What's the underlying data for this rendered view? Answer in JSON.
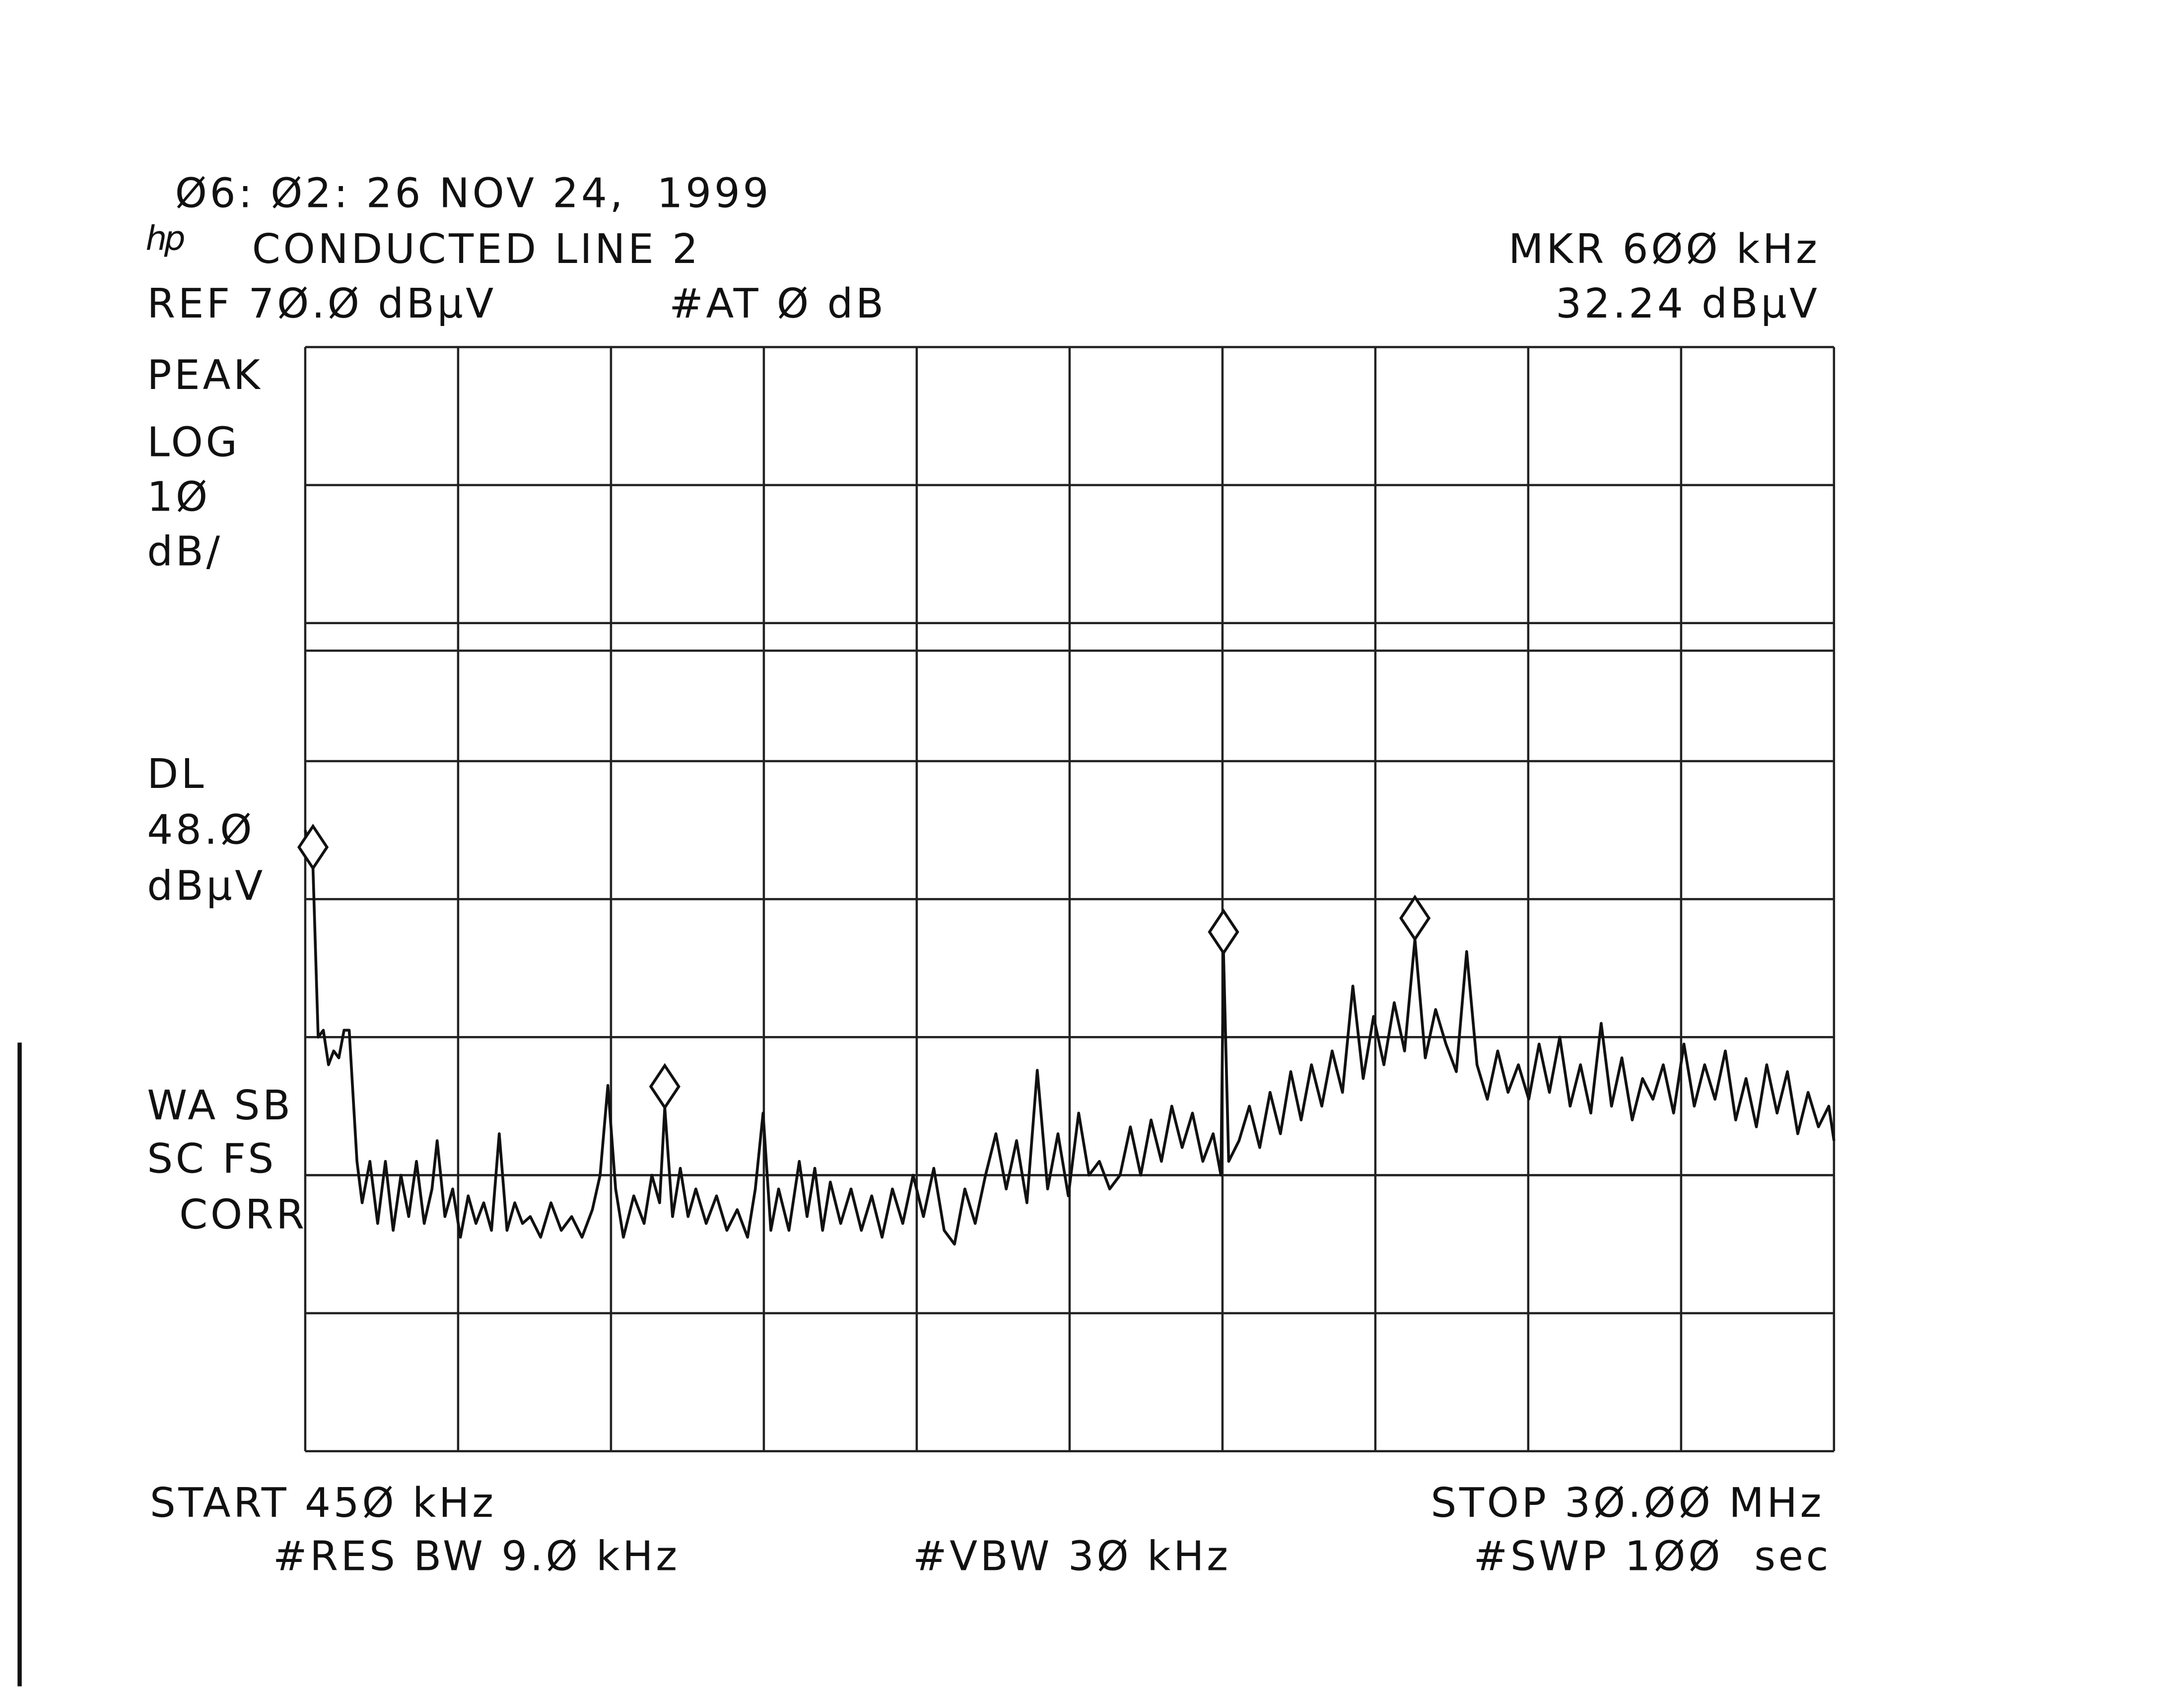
{
  "chart_data": {
    "type": "line",
    "title": "CONDUCTED LINE 2",
    "timestamp": "Ø6: Ø2: 26 NOV 24,  1999",
    "logo": "hp",
    "header_left": [
      "REF 7Ø.Ø dBµV",
      "#AT Ø dB"
    ],
    "marker_label": "MKR 6ØØ kHz",
    "marker_readout": "32.24 dBµV",
    "side_labels": [
      "PEAK",
      "LOG",
      "1Ø",
      "dB/",
      "DL",
      "48.Ø",
      "dBµV",
      "WA SB",
      "SC FS",
      "CORR"
    ],
    "footer": [
      "START 45Ø kHz",
      "STOP 3Ø.ØØ MHz",
      "#RES BW 9.Ø kHz",
      "#VBW 3Ø kHz",
      "#SWP 1ØØ  sec"
    ],
    "xlim": [
      0.45,
      30
    ],
    "ylim": [
      -10,
      70
    ],
    "grid": {
      "x_divisions": 10,
      "y_divisions": 8
    },
    "display_line": 48,
    "color": "#111111",
    "x": [
      0.45,
      0.6,
      0.7,
      0.8,
      0.9,
      1.0,
      1.1,
      1.2,
      1.3,
      1.45,
      1.55,
      1.7,
      1.85,
      2.0,
      2.15,
      2.3,
      2.45,
      2.6,
      2.75,
      2.9,
      3.0,
      3.15,
      3.3,
      3.45,
      3.6,
      3.75,
      3.9,
      4.05,
      4.2,
      4.35,
      4.5,
      4.65,
      4.8,
      5.0,
      5.2,
      5.4,
      5.6,
      5.8,
      6.0,
      6.15,
      6.3,
      6.45,
      6.6,
      6.8,
      7.0,
      7.15,
      7.3,
      7.4,
      7.55,
      7.7,
      7.85,
      8.0,
      8.2,
      8.4,
      8.6,
      8.8,
      9.0,
      9.15,
      9.3,
      9.45,
      9.6,
      9.8,
      10.0,
      10.15,
      10.3,
      10.45,
      10.6,
      10.8,
      11.0,
      11.2,
      11.4,
      11.6,
      11.8,
      12.0,
      12.2,
      12.4,
      12.6,
      12.8,
      13.0,
      13.2,
      13.4,
      13.6,
      13.8,
      14.0,
      14.2,
      14.4,
      14.6,
      14.8,
      15.0,
      15.2,
      15.4,
      15.6,
      15.8,
      16.0,
      16.2,
      16.4,
      16.6,
      16.8,
      17.0,
      17.2,
      17.4,
      17.6,
      17.8,
      18.0,
      18.15,
      18.2,
      18.3,
      18.5,
      18.7,
      18.9,
      19.1,
      19.3,
      19.5,
      19.7,
      19.9,
      20.1,
      20.3,
      20.5,
      20.7,
      20.9,
      21.1,
      21.3,
      21.5,
      21.7,
      21.9,
      22.1,
      22.3,
      22.5,
      22.7,
      22.9,
      23.1,
      23.3,
      23.5,
      23.7,
      23.9,
      24.1,
      24.3,
      24.5,
      24.7,
      24.9,
      25.1,
      25.3,
      25.5,
      25.7,
      25.9,
      26.1,
      26.3,
      26.5,
      26.7,
      26.9,
      27.1,
      27.3,
      27.5,
      27.7,
      27.9,
      28.1,
      28.3,
      28.5,
      28.7,
      28.9,
      29.1,
      29.3,
      29.5,
      29.7,
      29.9,
      30.0
    ],
    "values": [
      35,
      32.24,
      20,
      20.5,
      18,
      19,
      18.5,
      20.5,
      20.5,
      11,
      8,
      11,
      6.5,
      11,
      6,
      10,
      7,
      11,
      6.5,
      9,
      12.5,
      7,
      9,
      5.5,
      8.5,
      6.5,
      8,
      6,
      13,
      6,
      8,
      6.5,
      7,
      5.5,
      8,
      6,
      7,
      5.5,
      7.5,
      10,
      16.5,
      9,
      5.5,
      8.5,
      6.5,
      10,
      8,
      14.9,
      7,
      10.5,
      7,
      9,
      6.5,
      8.5,
      6,
      7.5,
      5.5,
      9,
      14.5,
      6,
      9,
      6,
      11,
      7,
      10.5,
      6,
      9.5,
      6.5,
      9,
      6,
      8.5,
      5.5,
      9,
      6.5,
      10,
      7,
      10.5,
      6,
      5,
      9,
      6.5,
      10,
      13,
      9,
      12.5,
      8,
      17.6,
      9,
      13,
      8.5,
      14.5,
      10,
      11,
      9,
      10,
      13.5,
      10,
      14,
      11,
      15,
      12,
      14.5,
      11,
      13,
      10,
      26.1,
      11,
      12.5,
      15,
      12,
      16,
      13,
      17.5,
      14,
      18,
      15,
      19,
      16,
      23.7,
      17,
      21.5,
      18,
      22.5,
      19,
      27.1,
      18.5,
      22,
      19.5,
      17.5,
      26.2,
      18,
      15.5,
      19,
      16,
      18,
      15.5,
      19.5,
      16,
      20,
      15,
      18,
      14.5,
      21,
      15,
      18.5,
      14,
      17,
      15.5,
      18,
      14.5,
      19.5,
      15,
      18,
      15.5,
      19,
      14,
      17,
      13.5,
      18,
      14.5,
      17.5,
      13,
      16,
      13.5,
      15,
      12.5
    ],
    "markers": {
      "x": [
        0.6,
        7.4,
        18.2,
        21.9
      ],
      "values": [
        32.24,
        14.9,
        26.1,
        27.1
      ]
    }
  }
}
